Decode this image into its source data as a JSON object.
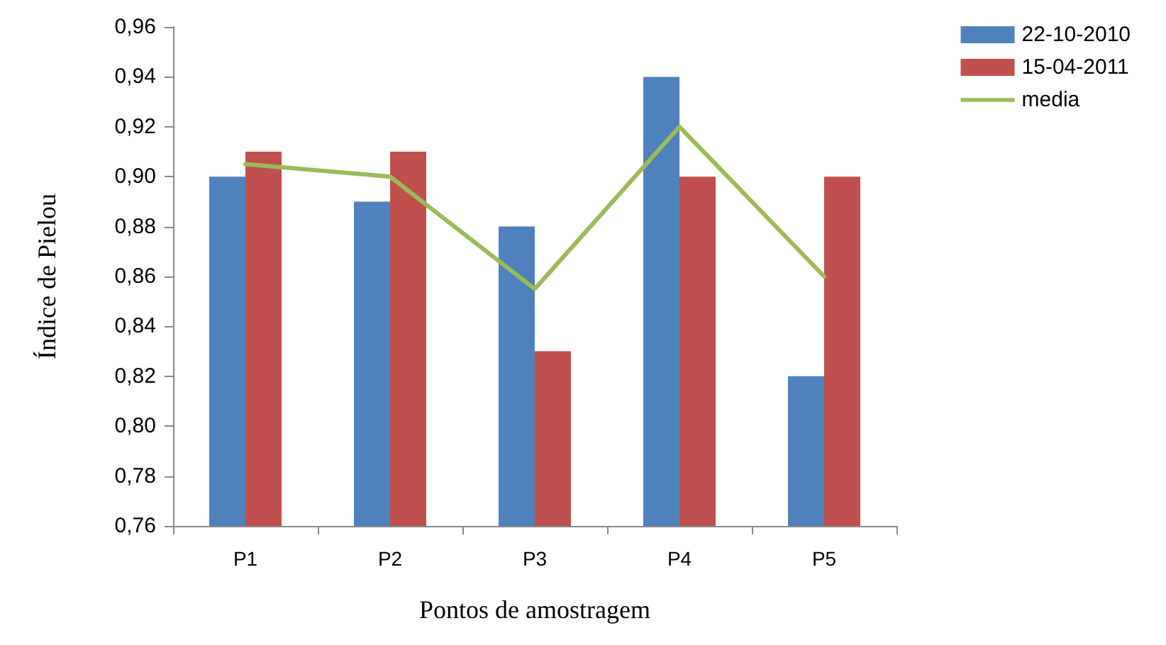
{
  "chart_data": {
    "type": "bar",
    "xlabel": "Pontos de amostragem",
    "ylabel": "Índice de Pielou",
    "categories": [
      "P1",
      "P2",
      "P3",
      "P4",
      "P5"
    ],
    "series": [
      {
        "name": "22-10-2010",
        "color": "#4f81bd",
        "values": [
          0.9,
          0.89,
          0.88,
          0.94,
          0.82
        ]
      },
      {
        "name": "15-04-2011",
        "color": "#c0504d",
        "values": [
          0.91,
          0.91,
          0.83,
          0.9,
          0.9
        ]
      },
      {
        "name": "media",
        "type": "line",
        "color": "#9bbb59",
        "values": [
          0.905,
          0.9,
          0.855,
          0.92,
          0.86
        ]
      }
    ],
    "ylim": [
      0.76,
      0.96
    ],
    "yticks": [
      {
        "value": 0.76,
        "label": "0,76"
      },
      {
        "value": 0.78,
        "label": "0,78"
      },
      {
        "value": 0.8,
        "label": "0,80"
      },
      {
        "value": 0.82,
        "label": "0,82"
      },
      {
        "value": 0.84,
        "label": "0,84"
      },
      {
        "value": 0.86,
        "label": "0,86"
      },
      {
        "value": 0.88,
        "label": "0,88"
      },
      {
        "value": 0.9,
        "label": "0,90"
      },
      {
        "value": 0.92,
        "label": "0,92"
      },
      {
        "value": 0.94,
        "label": "0,94"
      },
      {
        "value": 0.96,
        "label": "0,96"
      }
    ],
    "grid": false,
    "legend": "top right",
    "marker": "none",
    "line_style": "solid"
  }
}
